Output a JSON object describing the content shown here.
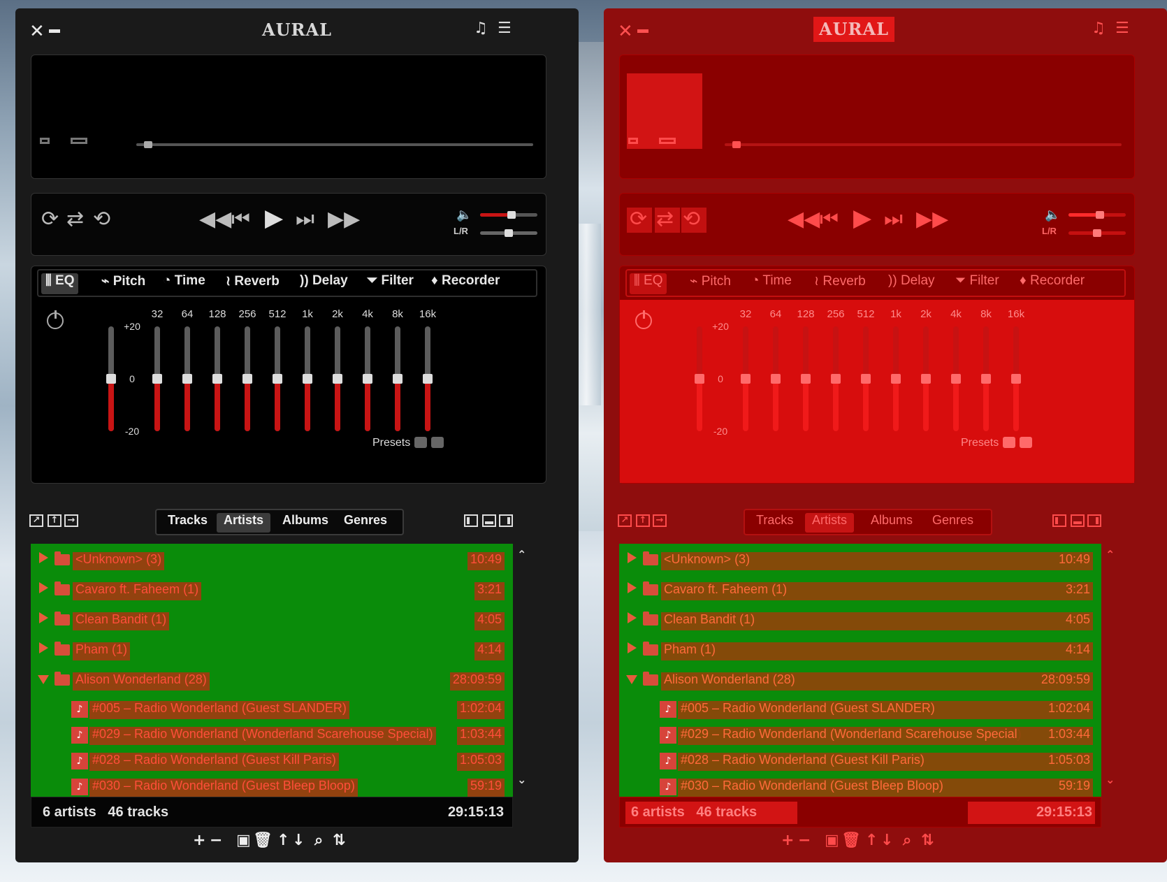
{
  "app": {
    "title": "AURAL"
  },
  "colors": {
    "accent": "#c81414",
    "list_bg": "#0a8c0a",
    "row_bg": "#a5381a",
    "red_skin": "#8f0d0d"
  },
  "icons": {
    "close": "close-icon",
    "minimize": "minimize-icon",
    "playlist": "playlist-icon",
    "effects": "effects-icon"
  },
  "player": {
    "seek_progress": 0.02,
    "volume": 0.55,
    "balance": 0.5,
    "lr_label": "L/R",
    "controls": [
      "repeat",
      "shuffle",
      "ab-loop",
      "seek-backward",
      "previous",
      "play",
      "next",
      "seek-forward"
    ]
  },
  "fx": {
    "tabs": [
      {
        "label": "EQ",
        "icon": "eq-icon"
      },
      {
        "label": "Pitch",
        "icon": "pitch-icon"
      },
      {
        "label": "Time",
        "icon": "time-icon"
      },
      {
        "label": "Reverb",
        "icon": "reverb-icon"
      },
      {
        "label": "Delay",
        "icon": "delay-icon"
      },
      {
        "label": "Filter",
        "icon": "filter-icon"
      },
      {
        "label": "Recorder",
        "icon": "mic-icon"
      }
    ],
    "eq": {
      "bands": [
        "32",
        "64",
        "128",
        "256",
        "512",
        "1k",
        "2k",
        "4k",
        "8k",
        "16k"
      ],
      "gain_labels": [
        "+20",
        "0",
        "-20"
      ],
      "preamp": 0,
      "gains": [
        0,
        0,
        0,
        0,
        0,
        0,
        0,
        0,
        0,
        0
      ],
      "presets_label": "Presets"
    }
  },
  "playlist": {
    "tabs": [
      "Tracks",
      "Artists",
      "Albums",
      "Genres"
    ],
    "selected_tab": "Artists",
    "rows": [
      {
        "kind": "group",
        "expanded": false,
        "name": "<Unknown> (3)",
        "duration": "10:49"
      },
      {
        "kind": "group",
        "expanded": false,
        "name": "Cavaro ft. Faheem (1)",
        "duration": "3:21"
      },
      {
        "kind": "group",
        "expanded": false,
        "name": "Clean Bandit (1)",
        "duration": "4:05"
      },
      {
        "kind": "group",
        "expanded": false,
        "name": "Pham (1)",
        "duration": "4:14"
      },
      {
        "kind": "group",
        "expanded": true,
        "name": "Alison Wonderland (28)",
        "duration": "28:09:59"
      },
      {
        "kind": "track",
        "name": "#005 – Radio Wonderland (Guest SLANDER)",
        "duration": "1:02:04"
      },
      {
        "kind": "track",
        "name": "#029 – Radio Wonderland (Wonderland Scarehouse Special)",
        "duration": "1:03:44"
      },
      {
        "kind": "track",
        "name": "#028 – Radio Wonderland (Guest Kill Paris)",
        "duration": "1:05:03"
      },
      {
        "kind": "track",
        "name": "#030 – Radio Wonderland (Guest Bleep Bloop)",
        "duration": "59:19"
      }
    ],
    "summary": {
      "artists": "6 artists",
      "tracks": "46 tracks",
      "total": "29:15:13"
    },
    "bottom_buttons": [
      "add",
      "remove",
      "save",
      "clear",
      "move-up",
      "move-down",
      "search",
      "sort"
    ]
  }
}
